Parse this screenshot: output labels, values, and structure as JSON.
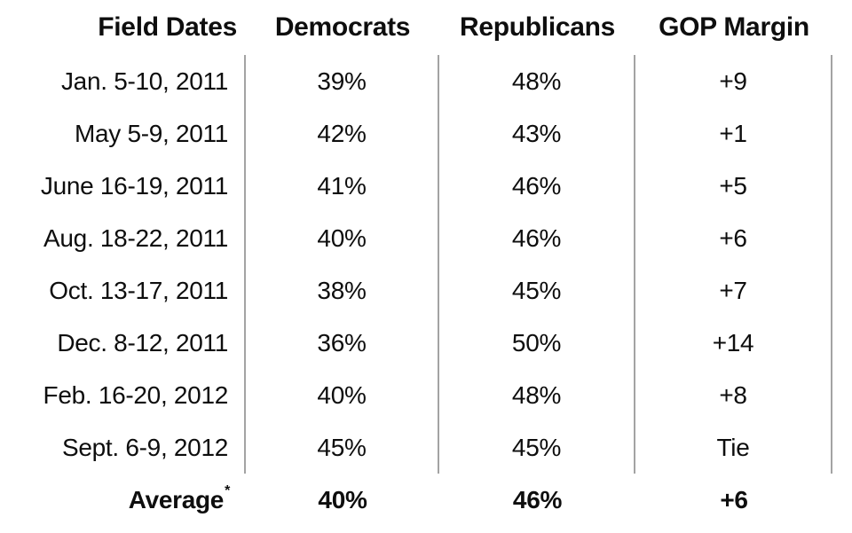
{
  "chart_data": {
    "type": "table",
    "columns": [
      "Field Dates",
      "Democrats",
      "Republicans",
      "GOP Margin"
    ],
    "rows": [
      [
        "Jan. 5-10, 2011",
        "39%",
        "48%",
        "+9"
      ],
      [
        "May 5-9, 2011",
        "42%",
        "43%",
        "+1"
      ],
      [
        "June 16-19, 2011",
        "41%",
        "46%",
        "+5"
      ],
      [
        "Aug. 18-22, 2011",
        "40%",
        "46%",
        "+6"
      ],
      [
        "Oct. 13-17, 2011",
        "38%",
        "45%",
        "+7"
      ],
      [
        "Dec. 8-12, 2011",
        "36%",
        "50%",
        "+14"
      ],
      [
        "Feb. 16-20, 2012",
        "40%",
        "48%",
        "+8"
      ],
      [
        "Sept. 6-9, 2012",
        "45%",
        "45%",
        "Tie"
      ]
    ],
    "summary_row": {
      "label": "Average",
      "footnote_marker": "*",
      "values": [
        "40%",
        "46%",
        "+6"
      ]
    },
    "layout_hints": {
      "dividers": "vertical gray rules between columns, data rows only",
      "first_column_align": "right",
      "value_columns_align": "center"
    }
  },
  "colors": {
    "text": "#0e0e0e",
    "divider": "#a3a3a3",
    "background": "#ffffff"
  }
}
